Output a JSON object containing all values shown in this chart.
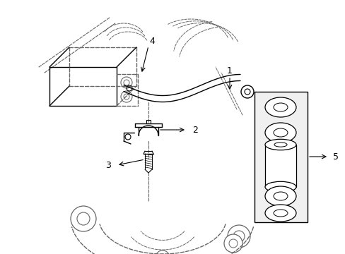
{
  "bg_color": "#ffffff",
  "line_color": "#000000",
  "dashed_color": "#666666",
  "label_color": "#000000",
  "fig_width": 4.89,
  "fig_height": 3.6,
  "dpi": 100
}
